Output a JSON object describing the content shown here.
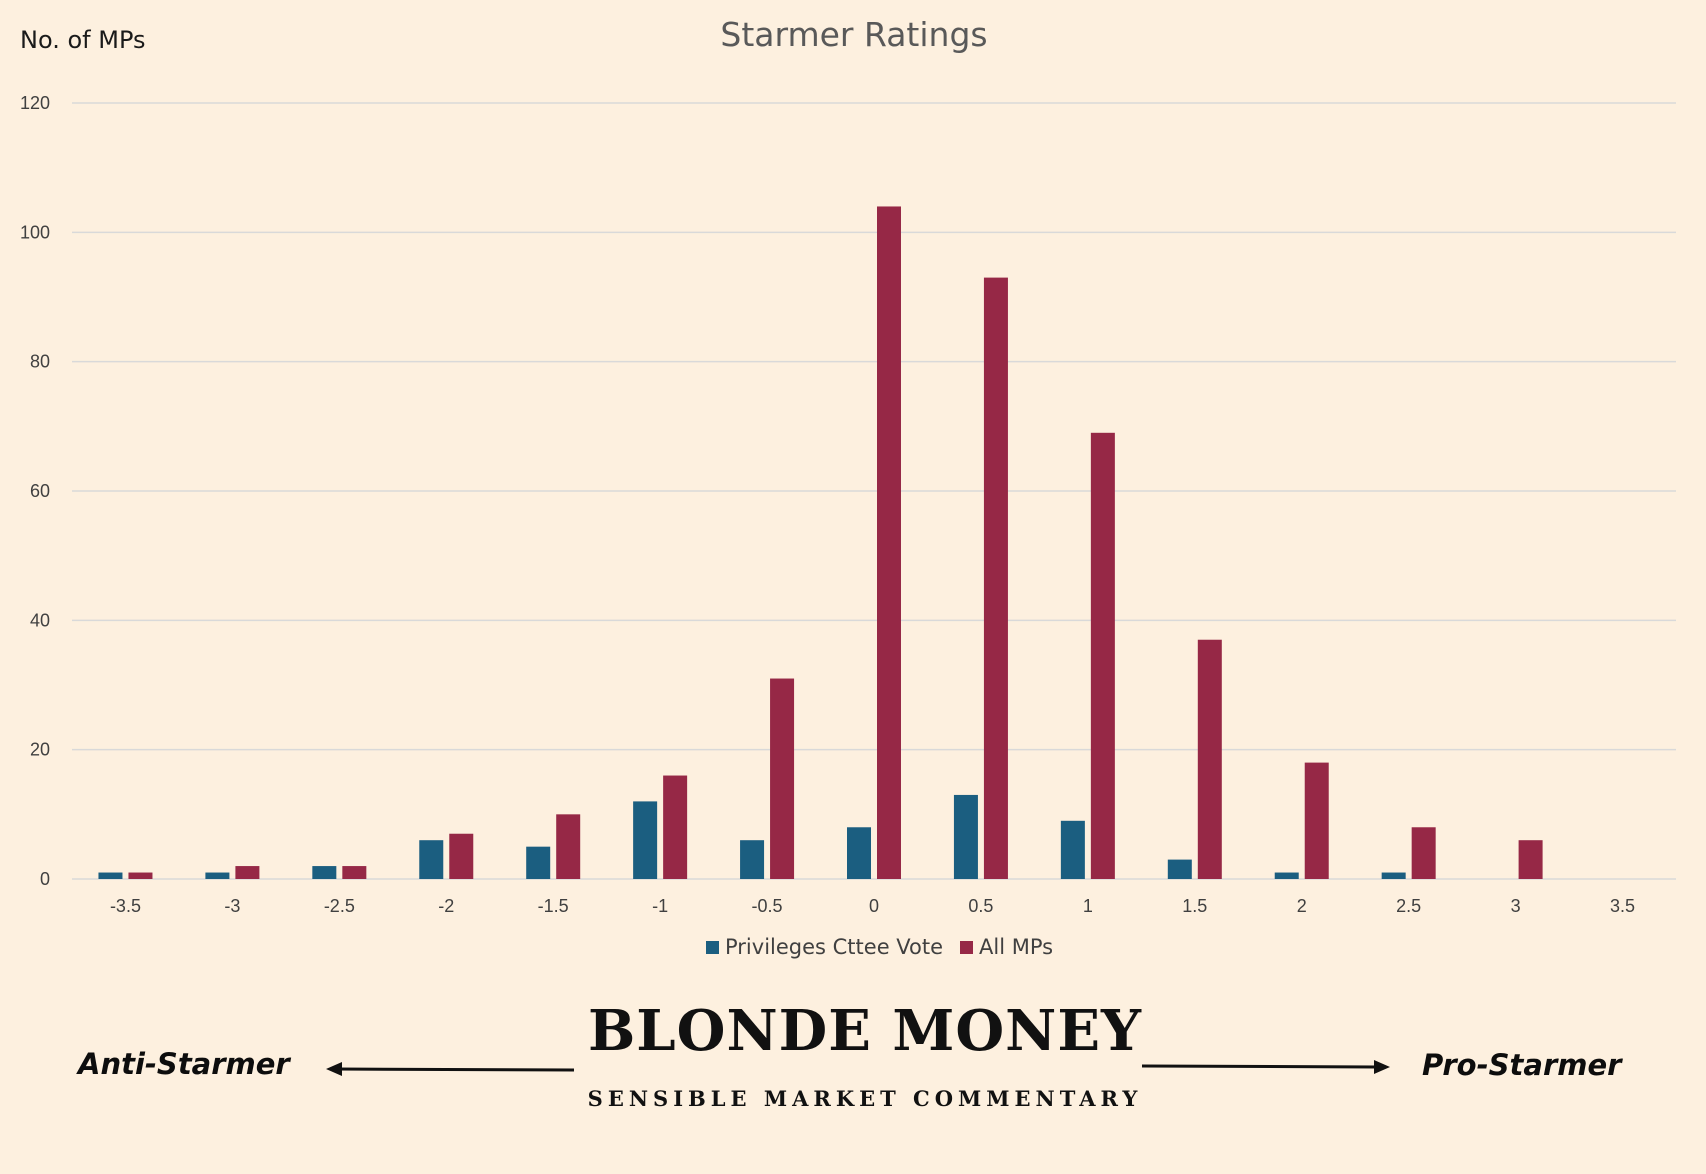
{
  "chart_data": {
    "type": "bar",
    "title": "Starmer Ratings",
    "ylabel": "No. of MPs",
    "xlabel": "",
    "ylim": [
      0,
      120
    ],
    "yticks": [
      0,
      20,
      40,
      60,
      80,
      100,
      120
    ],
    "grid": true,
    "legend_position": "bottom",
    "categories": [
      "-3.5",
      "-3",
      "-2.5",
      "-2",
      "-1.5",
      "-1",
      "-0.5",
      "0",
      "0.5",
      "1",
      "1.5",
      "2",
      "2.5",
      "3",
      "3.5"
    ],
    "series": [
      {
        "name": "Privileges Cttee Vote",
        "color": "#1b5e80",
        "values": [
          1,
          1,
          2,
          6,
          5,
          12,
          6,
          8,
          13,
          9,
          3,
          1,
          1,
          0,
          0
        ]
      },
      {
        "name": "All MPs",
        "color": "#962846",
        "values": [
          1,
          2,
          2,
          7,
          10,
          16,
          31,
          104,
          93,
          69,
          37,
          18,
          8,
          6,
          0
        ]
      }
    ]
  },
  "annotations": {
    "left_label": "Anti-Starmer",
    "right_label": "Pro-Starmer",
    "brand_name": "BLONDE MONEY",
    "brand_tagline": "SENSIBLE MARKET COMMENTARY"
  }
}
